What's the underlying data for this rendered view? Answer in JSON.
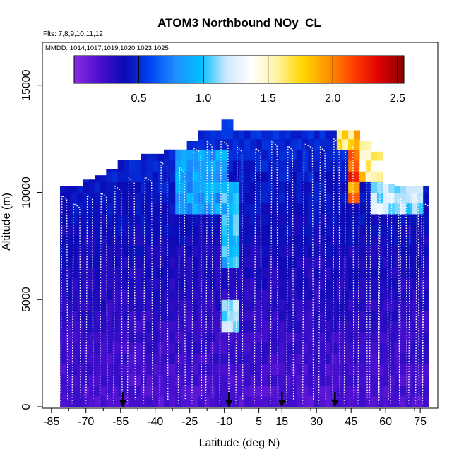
{
  "chart_data": {
    "type": "heatmap",
    "title": "ATOM3 Northbound NOy_CL",
    "subtitle_flights": "Flts: 7,8,9,10,11,12",
    "subtitle_dates": "MMDD: 1014,1017,1019,1020,1023,1025",
    "xlabel": "Latitude (deg N)",
    "ylabel": "Altitude (m)",
    "xlim": [
      -88,
      82
    ],
    "ylim": [
      0,
      17000
    ],
    "x_ticks": [
      -85,
      -70,
      -55,
      -40,
      -25,
      -10,
      5,
      15,
      30,
      45,
      60,
      75
    ],
    "x_tick_labels": [
      "-85",
      "-70",
      "-55",
      "-40",
      "-25",
      "-10",
      "5",
      "15",
      "30",
      "45",
      "60",
      "75"
    ],
    "y_ticks": [
      0,
      5000,
      10000,
      15000
    ],
    "y_tick_labels": [
      "0",
      "5000",
      "10000",
      "15000"
    ],
    "colorbar": {
      "range": [
        0,
        2.55
      ],
      "ticks": [
        0.5,
        1.0,
        1.5,
        2.0,
        2.5
      ],
      "tick_labels": [
        "0.5",
        "1.0",
        "1.5",
        "2.0",
        "2.5"
      ],
      "colors": [
        "#8a2be2",
        "#4b0fd0",
        "#0a0ab4",
        "#0044f0",
        "#1e90ff",
        "#00bfff",
        "#cfe8ff",
        "#ffffff",
        "#fff3a0",
        "#ffd700",
        "#ff9400",
        "#ff4000",
        "#e00000",
        "#8b0000"
      ]
    },
    "column_tops_m": [
      [
        -80,
        10300
      ],
      [
        -75,
        10300
      ],
      [
        -70,
        10600
      ],
      [
        -65,
        10800
      ],
      [
        -60,
        11100
      ],
      [
        -55,
        11500
      ],
      [
        -50,
        11500
      ],
      [
        -45,
        11800
      ],
      [
        -40,
        11800
      ],
      [
        -35,
        12000
      ],
      [
        -30,
        12000
      ],
      [
        -25,
        12400
      ],
      [
        -20,
        12900
      ],
      [
        -15,
        12900
      ],
      [
        -10,
        13400
      ],
      [
        -5,
        12900
      ],
      [
        0,
        12900
      ],
      [
        5,
        12900
      ],
      [
        10,
        12900
      ],
      [
        15,
        12900
      ],
      [
        20,
        12900
      ],
      [
        25,
        12900
      ],
      [
        30,
        12900
      ],
      [
        35,
        12900
      ],
      [
        40,
        12900
      ],
      [
        45,
        12900
      ],
      [
        50,
        12400
      ],
      [
        55,
        11900
      ],
      [
        60,
        10400
      ],
      [
        65,
        10300
      ],
      [
        70,
        10300
      ],
      [
        75,
        10300
      ]
    ],
    "enhanced_regions": [
      {
        "lat": [
          -12,
          -3
        ],
        "alt": [
          6500,
          10500
        ],
        "value": 1.0
      },
      {
        "lat": [
          -12,
          -3
        ],
        "alt": [
          3500,
          5000
        ],
        "value": 1.2
      },
      {
        "lat": [
          -30,
          -10
        ],
        "alt": [
          9000,
          12000
        ],
        "value": 0.9
      },
      {
        "lat": [
          38,
          48
        ],
        "alt": [
          12000,
          12900
        ],
        "value": 1.9
      },
      {
        "lat": [
          44,
          48
        ],
        "alt": [
          9500,
          12000
        ],
        "value": 2.2
      },
      {
        "lat": [
          48,
          58
        ],
        "alt": [
          10500,
          12400
        ],
        "value": 1.7
      },
      {
        "lat": [
          55,
          75
        ],
        "alt": [
          9000,
          10300
        ],
        "value": 1.2
      }
    ],
    "profile_latitudes": [
      -81,
      -76,
      -70,
      -64,
      -58,
      -52,
      -45,
      -38,
      -30,
      -24,
      -18,
      -12,
      -5,
      3,
      10,
      17,
      24,
      31,
      37,
      42,
      48,
      53,
      57,
      62,
      66,
      70,
      73,
      76
    ],
    "flight_path_color": "#ffffff",
    "arrow_markers_lat": [
      -54,
      -8,
      15,
      38
    ]
  }
}
